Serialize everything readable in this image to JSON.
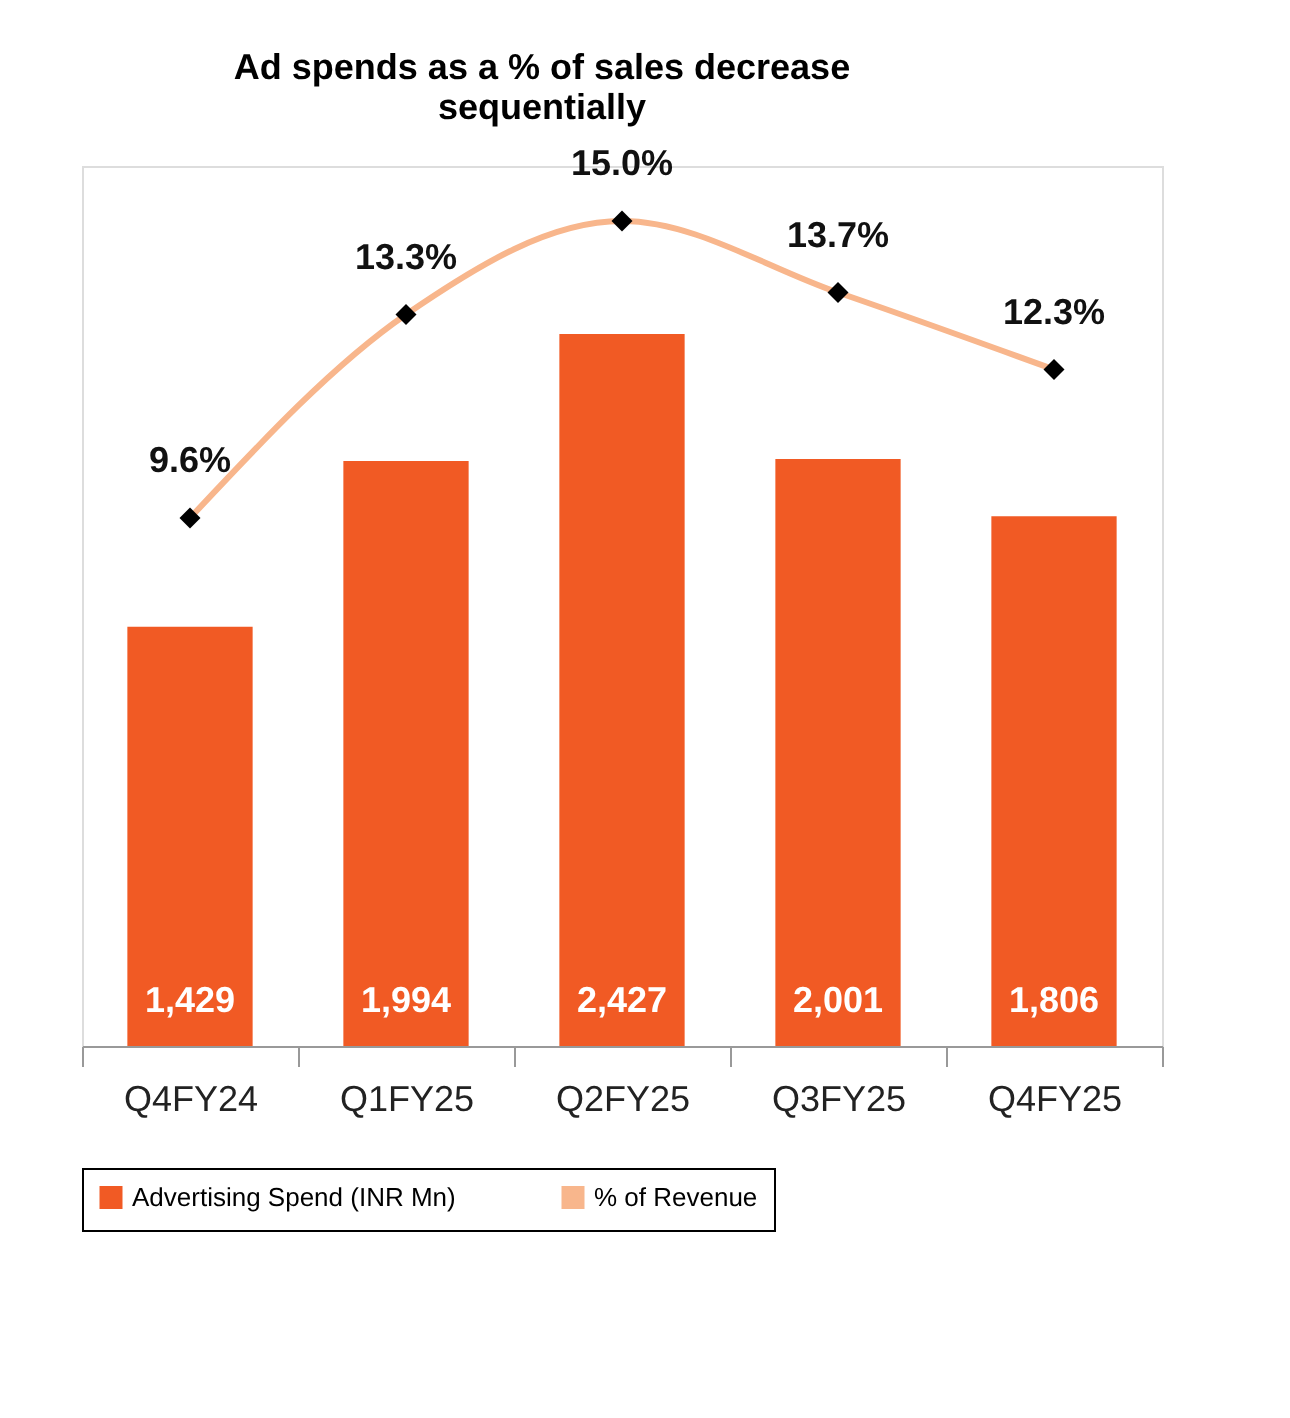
{
  "chart_data": {
    "type": "bar",
    "title": "Ad spends as a % of sales decrease sequentially",
    "categories": [
      "Q4FY24",
      "Q1FY25",
      "Q2FY25",
      "Q3FY25",
      "Q4FY25"
    ],
    "series": [
      {
        "name": "Advertising Spend (INR Mn)",
        "color": "#f15a24",
        "values": [
          1429,
          1994,
          2427,
          2001,
          1806
        ],
        "value_labels": [
          "1,429",
          "1,994",
          "2,427",
          "2,001",
          "1,806"
        ]
      },
      {
        "name": "% of Revenue",
        "type": "line",
        "axis": "y2",
        "color": "#f8b68c",
        "values": [
          9.6,
          13.3,
          15.0,
          13.7,
          12.3
        ],
        "value_labels": [
          "9.6%",
          "13.3%",
          "15.0%",
          "13.7%",
          "12.3%"
        ]
      }
    ],
    "ylim": [
      0,
      3000
    ],
    "y2lim": [
      0,
      16
    ],
    "tick_labels": "x",
    "grid": false,
    "legend": "bottom",
    "marker": "diamond",
    "line_style": "solid"
  }
}
